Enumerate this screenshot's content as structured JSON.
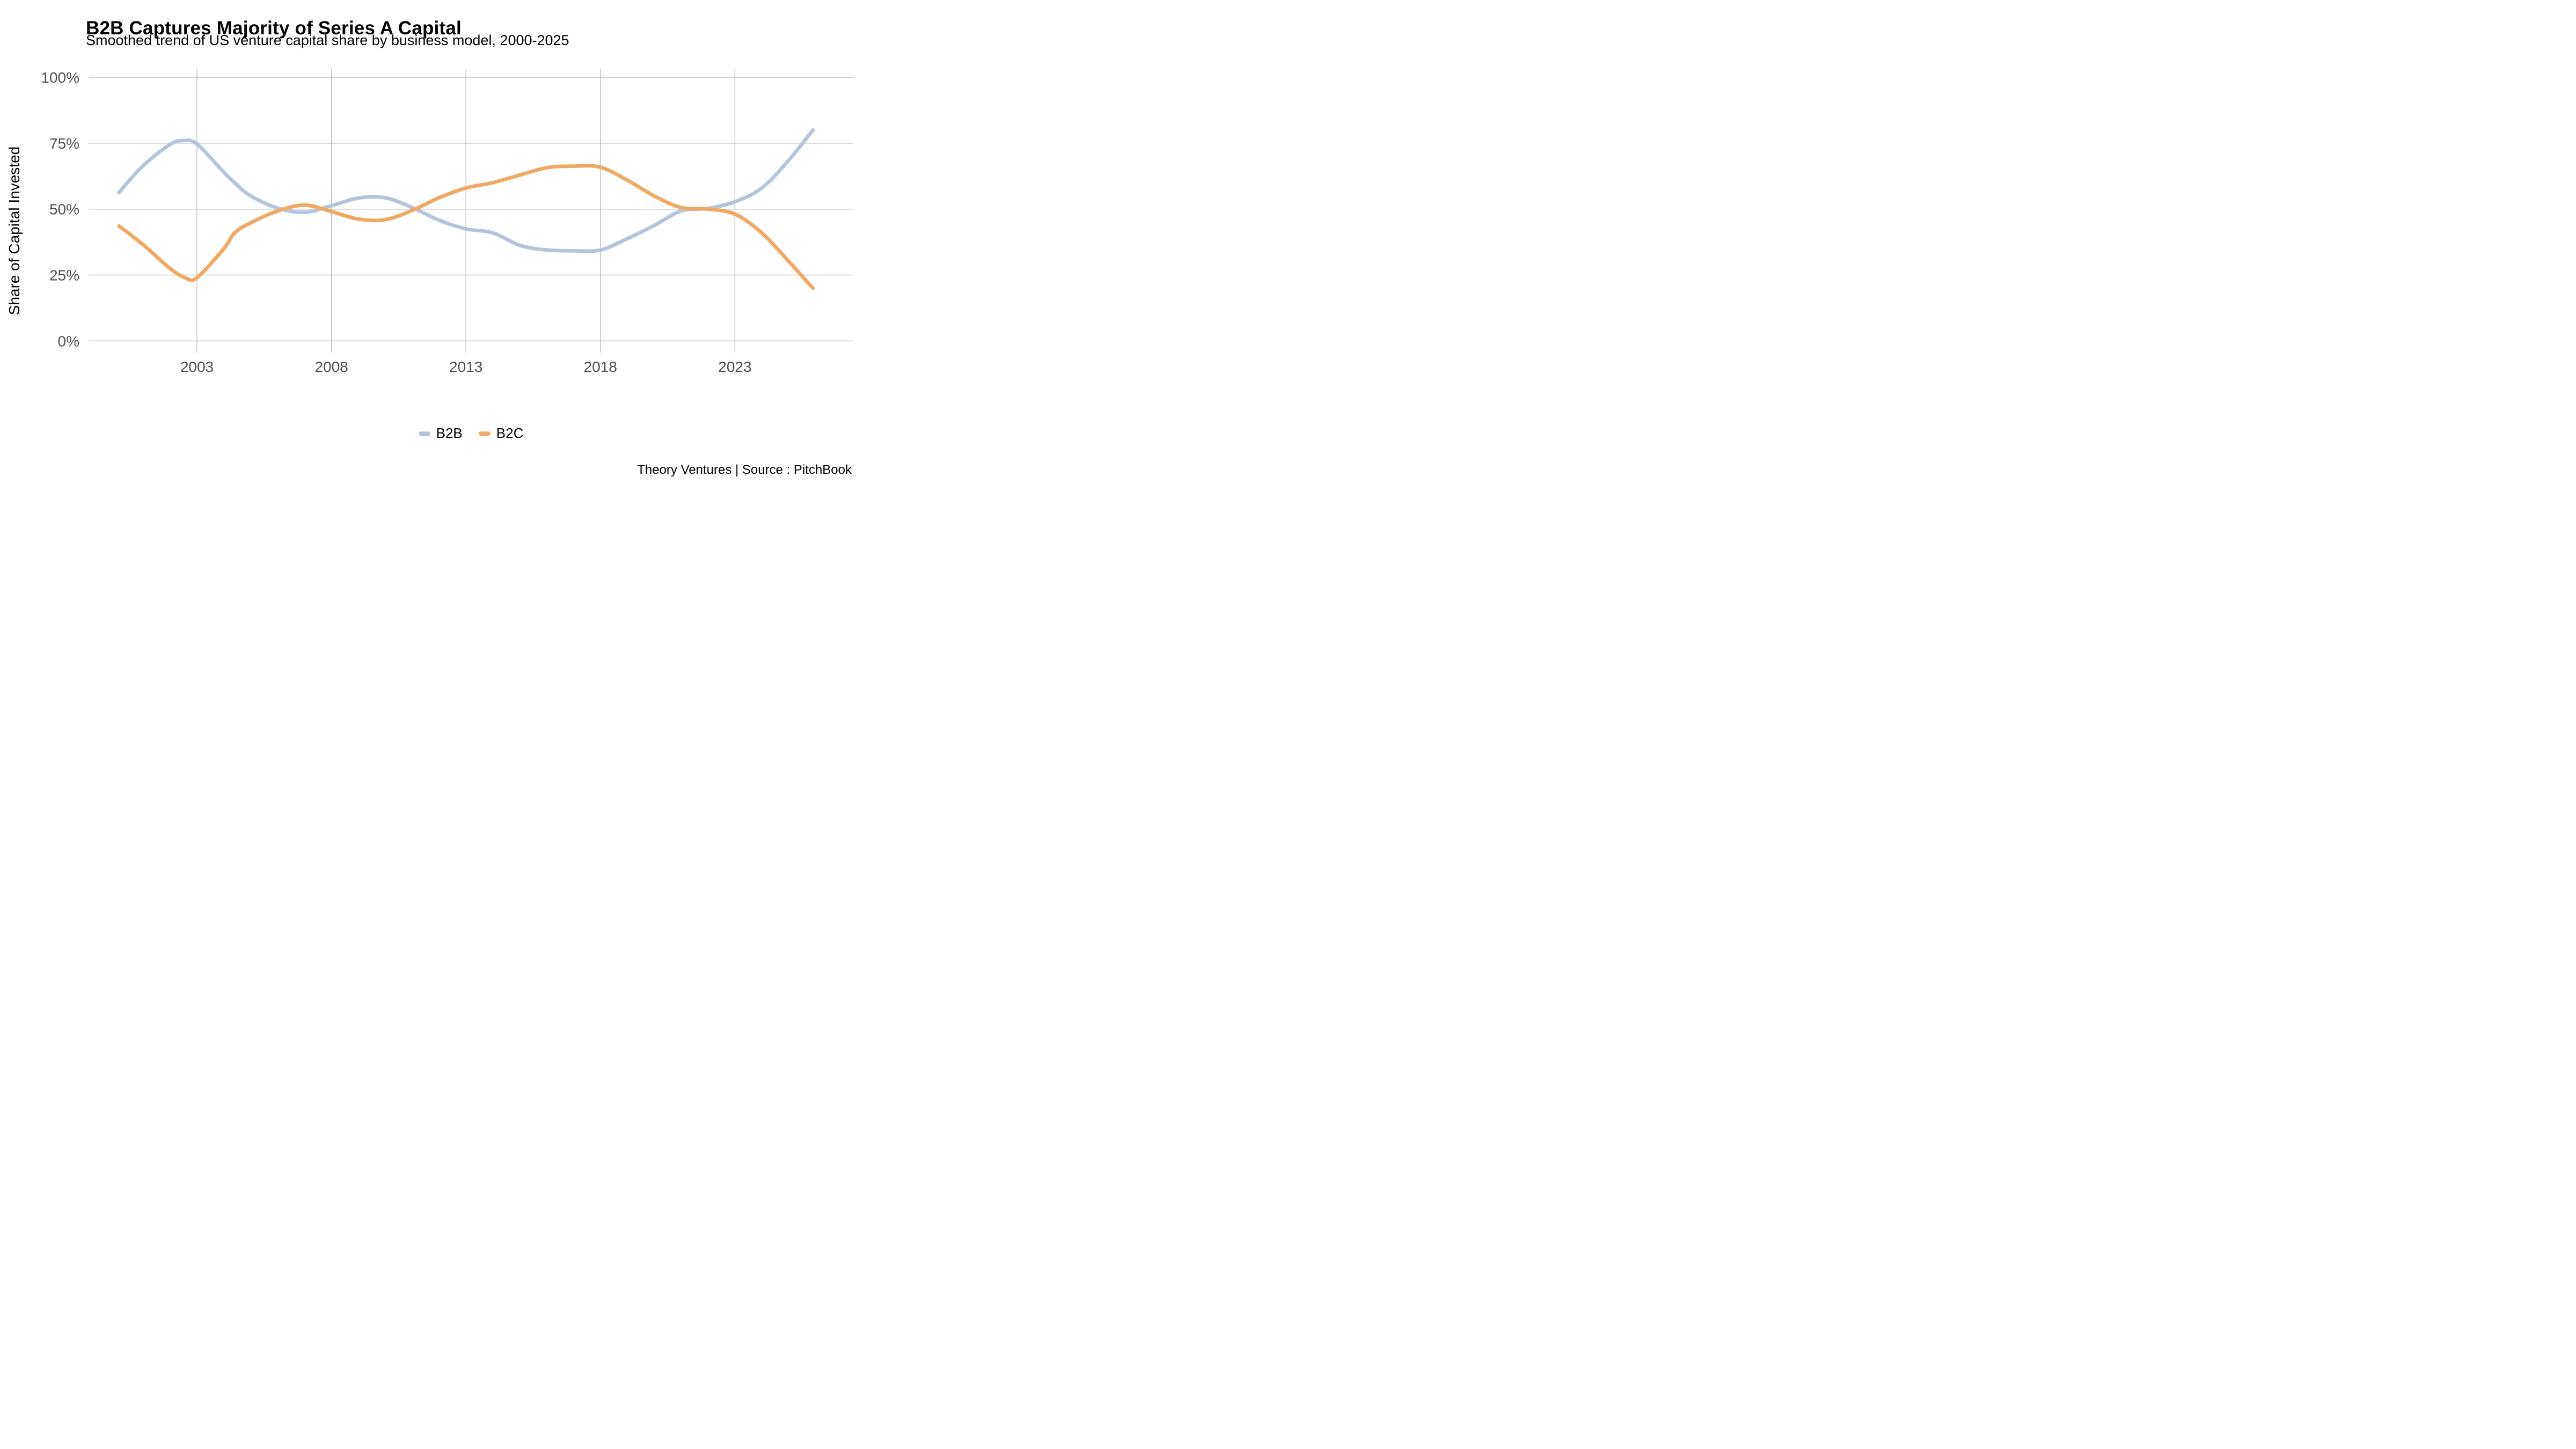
{
  "title": "B2B Captures Majority of Series A Capital",
  "subtitle": "Smoothed trend of US venture capital share by business model, 2000-2025",
  "footer": "Theory Ventures | Source : PitchBook",
  "axis": {
    "y_label": "Share of Capital Invested",
    "y_tick_labels": [
      "0%",
      "25%",
      "50%",
      "75%",
      "100%"
    ],
    "x_tick_labels": [
      "2003",
      "2008",
      "2013",
      "2018",
      "2023"
    ]
  },
  "legend": {
    "items": [
      {
        "label": "B2B",
        "color": "#B5C4DA"
      },
      {
        "label": "B2C",
        "color": "#F0A964"
      }
    ]
  },
  "colors": {
    "b2b_line": "#B5C4DA",
    "b2c_line": "#F0A964",
    "gridline": "#bdbdbd",
    "tick_text": "#4f4f4f",
    "text": "#000000",
    "background": "#ffffff"
  },
  "chart_data": {
    "type": "line",
    "title": "B2B Captures Majority of Series A Capital",
    "subtitle": "Smoothed trend of US venture capital share by business model, 2000-2025",
    "xlabel": "",
    "ylabel": "Share of Capital Invested",
    "x_ticks": [
      2003,
      2008,
      2013,
      2018,
      2023
    ],
    "y_ticks": [
      0,
      25,
      50,
      75,
      100
    ],
    "ylim": [
      0,
      100
    ],
    "xlim": [
      1999,
      2027
    ],
    "grid": true,
    "legend_position": "bottom-center",
    "units": "percent share of capital invested",
    "series": [
      {
        "name": "B2B",
        "color": "#B5C4DA",
        "points": [
          [
            2000.1,
            56.3
          ],
          [
            2001,
            66.5
          ],
          [
            2002,
            74.5
          ],
          [
            2002.5,
            76.0
          ],
          [
            2003,
            74.7
          ],
          [
            2004,
            64.0
          ],
          [
            2004.4,
            60.0
          ],
          [
            2005,
            55.0
          ],
          [
            2006,
            50.4
          ],
          [
            2007,
            48.8
          ],
          [
            2008,
            51.3
          ],
          [
            2009,
            54.2
          ],
          [
            2010,
            54.3
          ],
          [
            2011,
            50.6
          ],
          [
            2012,
            45.8
          ],
          [
            2013,
            42.5
          ],
          [
            2014,
            41.0
          ],
          [
            2015,
            36.3
          ],
          [
            2016,
            34.5
          ],
          [
            2017,
            34.2
          ],
          [
            2018,
            34.5
          ],
          [
            2019,
            38.8
          ],
          [
            2020,
            43.8
          ],
          [
            2021,
            49.3
          ],
          [
            2022,
            50.3
          ],
          [
            2023,
            52.8
          ],
          [
            2024,
            58.0
          ],
          [
            2025,
            68.5
          ],
          [
            2025.9,
            80.0
          ]
        ]
      },
      {
        "name": "B2C",
        "color": "#F0A964",
        "points": [
          [
            2000.1,
            43.6
          ],
          [
            2001,
            36.5
          ],
          [
            2002,
            27.5
          ],
          [
            2002.6,
            23.8
          ],
          [
            2003,
            24.0
          ],
          [
            2004,
            35.0
          ],
          [
            2004.4,
            41.0
          ],
          [
            2005,
            44.8
          ],
          [
            2006,
            49.3
          ],
          [
            2007,
            51.5
          ],
          [
            2008,
            49.1
          ],
          [
            2009,
            46.2
          ],
          [
            2010,
            46.0
          ],
          [
            2011,
            49.5
          ],
          [
            2012,
            54.3
          ],
          [
            2013,
            58.0
          ],
          [
            2014,
            60.0
          ],
          [
            2015,
            62.9
          ],
          [
            2016,
            65.7
          ],
          [
            2017,
            66.3
          ],
          [
            2018,
            65.9
          ],
          [
            2019,
            61.0
          ],
          [
            2020,
            55.0
          ],
          [
            2021,
            50.6
          ],
          [
            2022,
            50.0
          ],
          [
            2023,
            48.1
          ],
          [
            2024,
            41.0
          ],
          [
            2025,
            30.2
          ],
          [
            2025.9,
            20.0
          ]
        ]
      }
    ]
  }
}
